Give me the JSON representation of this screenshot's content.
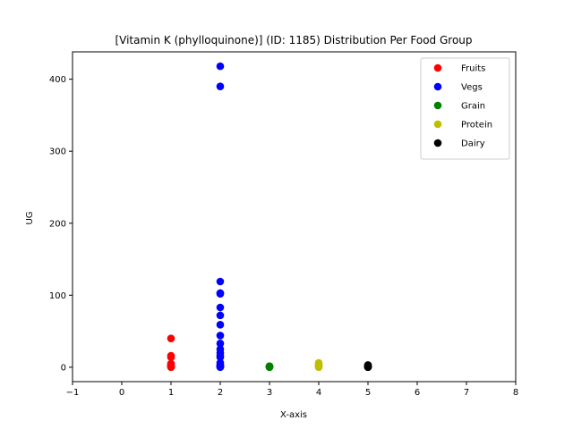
{
  "chart_data": {
    "type": "scatter",
    "title": "[Vitamin K (phylloquinone)] (ID: 1185) Distribution Per Food Group",
    "xlabel": "X-axis",
    "ylabel": "UG",
    "xlim": [
      -1,
      8
    ],
    "ylim": [
      -20,
      438
    ],
    "xticks": [
      -1,
      0,
      1,
      2,
      3,
      4,
      5,
      6,
      7,
      8
    ],
    "yticks": [
      0,
      100,
      200,
      300,
      400
    ],
    "grid": false,
    "legend_position": "top-right",
    "series": [
      {
        "name": "Fruits",
        "color": "#ff0000",
        "x": [
          1,
          1,
          1,
          1,
          1,
          1,
          1,
          1,
          1,
          1
        ],
        "y": [
          40,
          16,
          14,
          5,
          3,
          2,
          1.5,
          1,
          0.5,
          0
        ]
      },
      {
        "name": "Vegs",
        "color": "#0000ff",
        "x": [
          2,
          2,
          2,
          2,
          2,
          2,
          2,
          2,
          2,
          2,
          2,
          2,
          2,
          2,
          2,
          2,
          2,
          2,
          2,
          2,
          2
        ],
        "y": [
          418,
          390,
          119,
          103,
          102,
          83,
          72,
          59,
          44,
          33,
          25,
          20,
          16,
          14,
          6,
          3,
          2,
          1.5,
          1,
          0.5,
          0
        ]
      },
      {
        "name": "Grain",
        "color": "#008000",
        "x": [
          3,
          3,
          3,
          3,
          3
        ],
        "y": [
          1.5,
          1,
          0.5,
          0.2,
          0
        ]
      },
      {
        "name": "Protein",
        "color": "#bfbf00",
        "x": [
          4,
          4,
          4,
          4,
          4,
          4,
          4
        ],
        "y": [
          6,
          4,
          3,
          2,
          1,
          0.5,
          0
        ]
      },
      {
        "name": "Dairy",
        "color": "#000000",
        "x": [
          5,
          5,
          5,
          5,
          5,
          5,
          5
        ],
        "y": [
          3,
          2,
          1.5,
          1,
          0.5,
          0.2,
          0
        ]
      }
    ]
  }
}
